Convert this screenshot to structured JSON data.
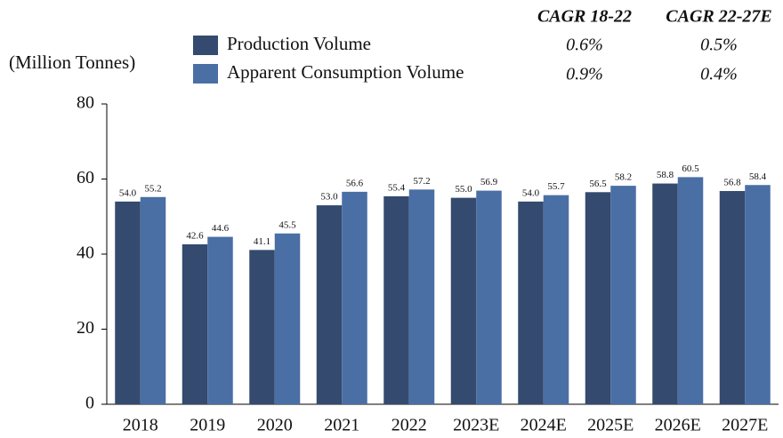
{
  "chart_data": {
    "type": "bar",
    "y_label": "(Million Tonnes)",
    "categories": [
      "2018",
      "2019",
      "2020",
      "2021",
      "2022",
      "2023E",
      "2024E",
      "2025E",
      "2026E",
      "2027E"
    ],
    "series": [
      {
        "name": "Production Volume",
        "color": "#344a6e",
        "values": [
          54.0,
          42.6,
          41.1,
          53.0,
          55.4,
          55.0,
          54.0,
          56.5,
          58.8,
          56.8
        ],
        "value_labels": [
          "54.0",
          "42.6",
          "41.1",
          "53.0",
          "55.4",
          "55.0",
          "54.0",
          "56.5",
          "58.8",
          "56.8"
        ]
      },
      {
        "name": "Apparent Consumption Volume",
        "color": "#4a6fa5",
        "values": [
          55.2,
          44.6,
          45.5,
          56.6,
          57.2,
          56.9,
          55.7,
          58.2,
          60.5,
          58.4
        ],
        "value_labels": [
          "55.2",
          "44.6",
          "45.5",
          "56.6",
          "57.2",
          "56.9",
          "55.7",
          "58.2",
          "60.5",
          "58.4"
        ]
      }
    ],
    "cagr": {
      "headers": [
        "CAGR 18-22",
        "CAGR 22-27E"
      ],
      "rows": [
        [
          "0.6%",
          "0.5%"
        ],
        [
          "0.9%",
          "0.4%"
        ]
      ]
    },
    "ylim": [
      0,
      80
    ],
    "yticks": [
      0,
      20,
      40,
      60,
      80
    ],
    "grid": false
  }
}
